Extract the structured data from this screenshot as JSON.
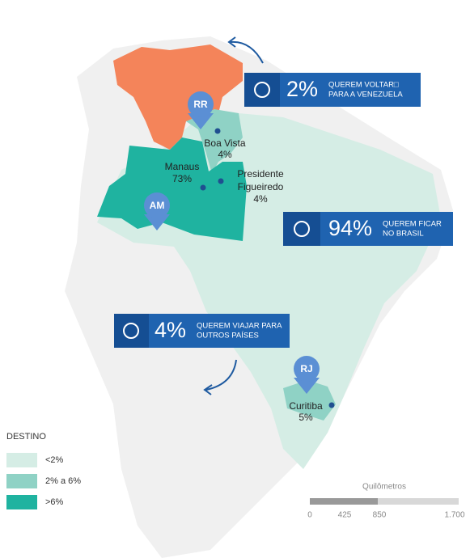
{
  "callouts": [
    {
      "percent": "2%",
      "line1": "QUEREM VOLTAR□",
      "line2": "PARA A VENEZUELA"
    },
    {
      "percent": "94%",
      "line1": "QUEREM FICAR",
      "line2": "NO BRASIL"
    },
    {
      "percent": "4%",
      "line1": "QUEREM VIAJAR PARA",
      "line2": "OUTROS PAÍSES"
    }
  ],
  "markers": [
    "RR",
    "AM",
    "RJ"
  ],
  "cities": [
    {
      "name": "Boa Vista",
      "share": "4%"
    },
    {
      "name": "Manaus",
      "share": "73%"
    },
    {
      "name": "Presidente",
      "name2": "Figueiredo",
      "share": "4%"
    },
    {
      "name": "Curitiba",
      "share": "5%"
    }
  ],
  "legend": {
    "title": "DESTINO",
    "items": [
      "<2%",
      "2% a 6%",
      ">6%"
    ]
  },
  "scale": {
    "title": "Quilômetros",
    "ticks": [
      "0",
      "425",
      "850",
      "1.700"
    ]
  }
}
